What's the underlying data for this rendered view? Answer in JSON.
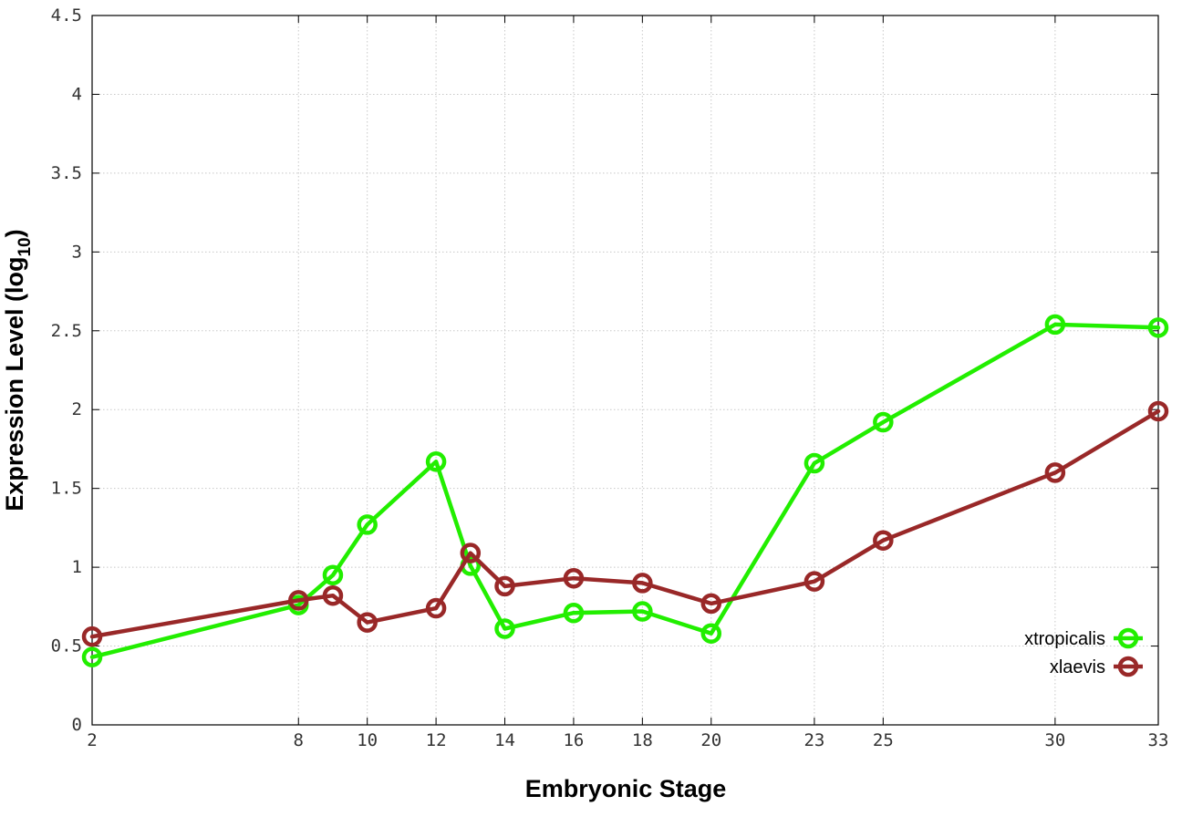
{
  "chart_data": {
    "type": "line",
    "title": "",
    "xlabel": "Embryonic Stage",
    "ylabel_main": "Expression Level (log",
    "ylabel_sub": "10",
    "ylabel_end": ")",
    "x": [
      2,
      8,
      9,
      10,
      12,
      13,
      14,
      16,
      18,
      20,
      23,
      25,
      30,
      33
    ],
    "xticks": [
      2,
      8,
      10,
      12,
      14,
      16,
      18,
      20,
      23,
      25,
      30,
      33
    ],
    "xtick_labels": [
      "2",
      "8",
      "10",
      "12",
      "14",
      "16",
      "18",
      "20",
      "23",
      "25",
      "30",
      "33"
    ],
    "yticks": [
      0,
      0.5,
      1,
      1.5,
      2,
      2.5,
      3,
      3.5,
      4,
      4.5
    ],
    "ytick_labels": [
      "0",
      "0.5",
      "1",
      "1.5",
      "2",
      "2.5",
      "3",
      "3.5",
      "4",
      "4.5"
    ],
    "xlim": [
      2,
      33
    ],
    "ylim": [
      0,
      4.5
    ],
    "grid": true,
    "legend_position": "bottom-right",
    "series": [
      {
        "name": "xtropicalis",
        "color": "#22ee00",
        "marker": "open-circle",
        "values": [
          0.43,
          0.76,
          0.95,
          1.27,
          1.67,
          1.01,
          0.61,
          0.71,
          0.72,
          0.58,
          1.66,
          1.92,
          2.54,
          2.52
        ]
      },
      {
        "name": "xlaevis",
        "color": "#992828",
        "marker": "open-circle",
        "values": [
          0.56,
          0.79,
          0.82,
          0.65,
          0.74,
          1.09,
          0.88,
          0.93,
          0.9,
          0.77,
          0.91,
          1.17,
          1.6,
          1.99
        ]
      }
    ]
  }
}
